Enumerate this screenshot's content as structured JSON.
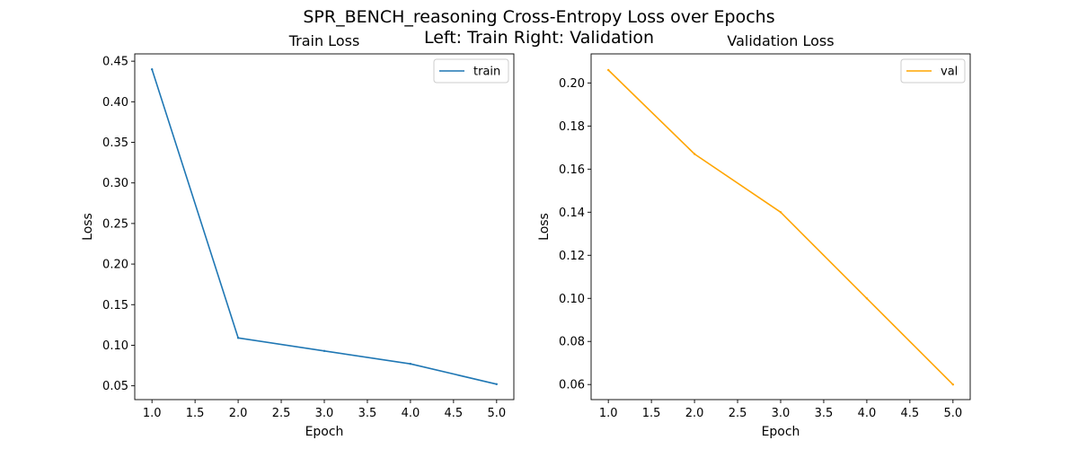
{
  "figure": {
    "suptitle_line1": "SPR_BENCH_reasoning Cross-Entropy Loss over Epochs",
    "suptitle_line2": "Left: Train  Right: Validation"
  },
  "chart_data": [
    {
      "type": "line",
      "title": "Train Loss",
      "xlabel": "Epoch",
      "ylabel": "Loss",
      "xlim": [
        0.8,
        5.2
      ],
      "ylim": [
        0.033,
        0.459
      ],
      "xticks": [
        1.0,
        1.5,
        2.0,
        2.5,
        3.0,
        3.5,
        4.0,
        4.5,
        5.0
      ],
      "yticks": [
        0.05,
        0.1,
        0.15,
        0.2,
        0.25,
        0.3,
        0.35,
        0.4,
        0.45
      ],
      "x_tick_decimals": 1,
      "y_tick_decimals": 2,
      "legend_position": "top-right",
      "series": [
        {
          "name": "train",
          "color": "#1f77b4",
          "x": [
            1,
            2,
            3,
            4,
            5
          ],
          "y": [
            0.44,
            0.109,
            0.093,
            0.077,
            0.052
          ]
        }
      ]
    },
    {
      "type": "line",
      "title": "Validation Loss",
      "xlabel": "Epoch",
      "ylabel": "Loss",
      "xlim": [
        0.8,
        5.2
      ],
      "ylim": [
        0.053,
        0.2135
      ],
      "xticks": [
        1.0,
        1.5,
        2.0,
        2.5,
        3.0,
        3.5,
        4.0,
        4.5,
        5.0
      ],
      "yticks": [
        0.06,
        0.08,
        0.1,
        0.12,
        0.14,
        0.16,
        0.18,
        0.2
      ],
      "x_tick_decimals": 1,
      "y_tick_decimals": 2,
      "legend_position": "top-right",
      "series": [
        {
          "name": "val",
          "color": "#ffa500",
          "x": [
            1,
            2,
            3,
            4,
            5
          ],
          "y": [
            0.206,
            0.167,
            0.14,
            0.1,
            0.06
          ]
        }
      ]
    }
  ]
}
